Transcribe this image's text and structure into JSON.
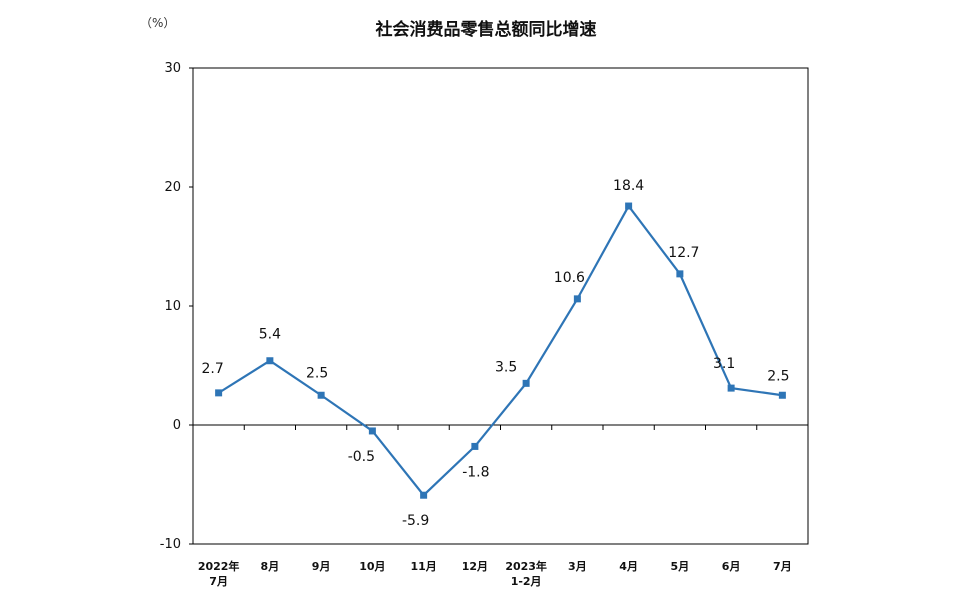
{
  "chart_data": {
    "type": "line",
    "title": "社会消费品零售总额同比增速",
    "unit_label": "（%）",
    "categories": [
      [
        "2022年",
        "7月"
      ],
      [
        "8月"
      ],
      [
        "9月"
      ],
      [
        "10月"
      ],
      [
        "11月"
      ],
      [
        "12月"
      ],
      [
        "2023年",
        "1-2月"
      ],
      [
        "3月"
      ],
      [
        "4月"
      ],
      [
        "5月"
      ],
      [
        "6月"
      ],
      [
        "7月"
      ]
    ],
    "values": [
      2.7,
      5.4,
      2.5,
      -0.5,
      -5.9,
      -1.8,
      3.5,
      10.6,
      18.4,
      12.7,
      3.1,
      2.5
    ],
    "data_labels": [
      "2.7",
      "5.4",
      "2.5",
      "-0.5",
      "-5.9",
      "-1.8",
      "3.5",
      "10.6",
      "18.4",
      "12.7",
      "3.1",
      "2.5"
    ],
    "ylim": [
      -10,
      30
    ],
    "yticks": [
      -10,
      0,
      10,
      20,
      30
    ],
    "ytick_labels": [
      "-10",
      "0",
      "10",
      "20",
      "30"
    ],
    "grid": false,
    "series_color": "#2E75B6"
  }
}
